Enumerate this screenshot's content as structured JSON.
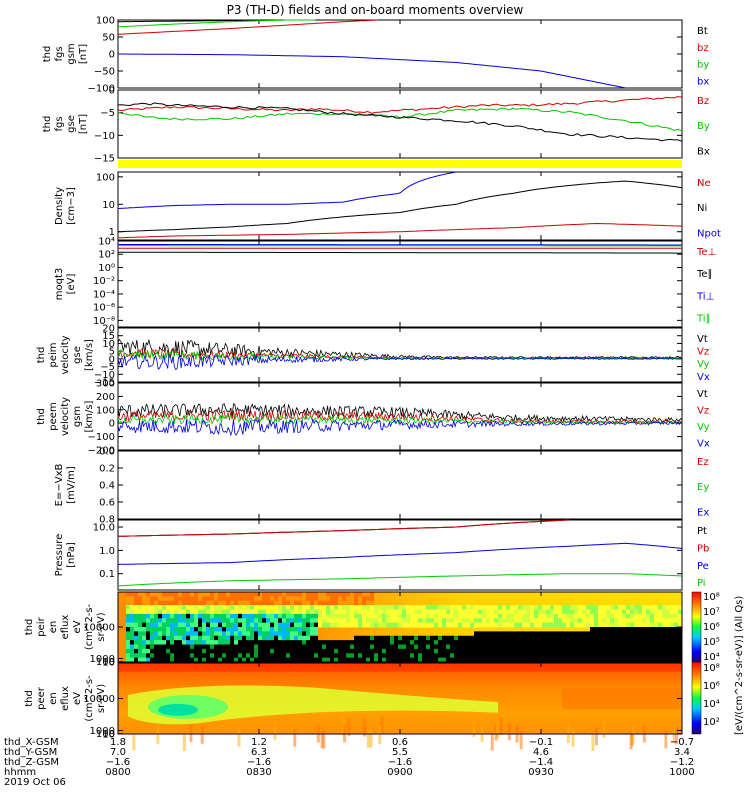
{
  "title": "P3 (TH-D) fields and on-board moments overview",
  "colors": {
    "black": "#000000",
    "red": "#d00000",
    "green": "#00c800",
    "blue": "#0000e0",
    "yellow": "#ffff00"
  },
  "chart_data": [
    {
      "id": "fgs_gsm",
      "type": "line",
      "ylabel": [
        "thd",
        "fgs",
        "gsm",
        "[nT]"
      ],
      "ylim": [
        -100,
        100
      ],
      "yticks": [
        "100",
        "50",
        "0",
        "−50",
        "−100"
      ],
      "series": [
        {
          "name": "Bt",
          "color": "black",
          "x": [
            0,
            0.3,
            0.46
          ],
          "y": [
            95,
            100,
            100
          ]
        },
        {
          "name": "bz",
          "color": "red",
          "x": [
            0,
            0.2,
            0.4,
            0.46
          ],
          "y": [
            58,
            75,
            95,
            100
          ]
        },
        {
          "name": "by",
          "color": "green",
          "x": [
            0,
            0.1,
            0.2,
            0.3,
            0.35
          ],
          "y": [
            80,
            88,
            95,
            100,
            100
          ]
        },
        {
          "name": "bx",
          "color": "blue",
          "x": [
            0,
            0.2,
            0.4,
            0.6,
            0.75,
            0.9
          ],
          "y": [
            0,
            -2,
            -8,
            -25,
            -50,
            -100
          ]
        }
      ]
    },
    {
      "id": "fgs_gse",
      "type": "line",
      "ylabel": [
        "thd",
        "fgs",
        "gse",
        "[nT]"
      ],
      "ylim": [
        -17,
        3
      ],
      "yticks": [
        "0",
        "−5",
        "−10",
        "−15"
      ],
      "series": [
        {
          "name": "Bz",
          "color": "red",
          "x": [
            0,
            0.05,
            0.1,
            0.2,
            0.3,
            0.35,
            0.45,
            0.55,
            0.65,
            0.72,
            0.8,
            0.9,
            1.0
          ],
          "y": [
            -3,
            -2.5,
            -2,
            -2.5,
            -3,
            -2.5,
            -3.5,
            -2.5,
            -1.5,
            -1.5,
            -1,
            0,
            1
          ]
        },
        {
          "name": "By",
          "color": "green",
          "x": [
            0,
            0.05,
            0.1,
            0.2,
            0.3,
            0.4,
            0.5,
            0.6,
            0.7,
            0.8,
            0.9,
            1.0
          ],
          "y": [
            -3.5,
            -5,
            -5.5,
            -5.5,
            -4,
            -4,
            -5,
            -3,
            -2.5,
            -3.5,
            -6,
            -9
          ]
        },
        {
          "name": "Bx",
          "color": "black",
          "x": [
            0,
            0.05,
            0.1,
            0.2,
            0.3,
            0.4,
            0.5,
            0.6,
            0.7,
            0.8,
            0.9,
            1.0
          ],
          "y": [
            -1.5,
            -1,
            -1.5,
            -2,
            -2.5,
            -4,
            -5,
            -6,
            -7.5,
            -10,
            -11,
            -12
          ]
        }
      ]
    },
    {
      "id": "density",
      "type": "line",
      "log": true,
      "ylabel": [
        "Density",
        "[cm−3]"
      ],
      "ylim": [
        0.5,
        150
      ],
      "ytickvals": [
        100,
        10,
        1
      ],
      "yticks": [
        "100",
        "10",
        "1"
      ],
      "series": [
        {
          "name": "Ne",
          "color": "red",
          "x": [
            0,
            0.1,
            0.3,
            0.5,
            0.7,
            0.85,
            1.0
          ],
          "y": [
            0.6,
            0.7,
            0.8,
            1.0,
            1.4,
            2.0,
            1.6
          ]
        },
        {
          "name": "Ni",
          "color": "black",
          "x": [
            0,
            0.1,
            0.2,
            0.3,
            0.5,
            0.6,
            0.7,
            0.85,
            0.9,
            1.0
          ],
          "y": [
            1,
            1.2,
            1.5,
            2,
            5,
            10,
            25,
            60,
            70,
            40
          ]
        },
        {
          "name": "Npot",
          "color": "blue",
          "x": [
            0,
            0.1,
            0.2,
            0.3,
            0.4,
            0.5,
            0.6
          ],
          "y": [
            7,
            9,
            10,
            10,
            12,
            25,
            150
          ]
        }
      ]
    },
    {
      "id": "moqt3",
      "type": "line",
      "log": true,
      "ylabel": [
        "moqt3",
        "[eV]"
      ],
      "ylim": [
        1e-09,
        10000.0
      ],
      "ytickvals": [
        10000.0,
        100.0,
        1,
        0.01,
        0.0001,
        1e-06,
        1e-08
      ],
      "yticks": [
        "10⁴",
        "10²",
        "10⁰",
        "10⁻²",
        "10⁻⁴",
        "10⁻⁶",
        "10⁻⁸"
      ],
      "series": [
        {
          "name": "Te⊥",
          "color": "red",
          "x": [
            0,
            1
          ],
          "y": [
            800,
            800
          ]
        },
        {
          "name": "Te∥",
          "color": "black",
          "x": [
            0,
            1
          ],
          "y": [
            200,
            150
          ]
        },
        {
          "name": "Ti⊥",
          "color": "blue",
          "x": [
            0,
            1
          ],
          "y": [
            3000,
            2500
          ]
        },
        {
          "name": "Ti∥",
          "color": "green",
          "x": [
            0,
            1
          ],
          "y": [
            2000,
            1800
          ]
        }
      ]
    },
    {
      "id": "peim_vel",
      "type": "noisy",
      "ylabel": [
        "thd",
        "peim",
        "velocity",
        "gse",
        "[km/s]"
      ],
      "ylim": [
        -15,
        20
      ],
      "yticks": [
        "20",
        "15",
        "10",
        "5",
        "0",
        "−5",
        "−10",
        "−15"
      ],
      "series": [
        {
          "name": "Vt",
          "color": "black",
          "x": [
            0,
            0.1,
            0.3,
            0.5,
            0.6,
            1.0
          ],
          "y": [
            8,
            7,
            4,
            1.5,
            1,
            1
          ],
          "amp": [
            5,
            6,
            3,
            1,
            0.5,
            0.5
          ]
        },
        {
          "name": "Vz",
          "color": "red",
          "x": [
            0,
            0.1,
            0.3,
            0.5,
            1.0
          ],
          "y": [
            4,
            3,
            2,
            0.5,
            0.5
          ],
          "amp": [
            3,
            3,
            1.5,
            0.5,
            0.3
          ]
        },
        {
          "name": "Vy",
          "color": "green",
          "x": [
            0,
            0.1,
            0.3,
            0.5,
            1.0
          ],
          "y": [
            3,
            2,
            1,
            0.5,
            0.2
          ],
          "amp": [
            3,
            3,
            1.5,
            0.5,
            0.3
          ]
        },
        {
          "name": "Vx",
          "color": "blue",
          "x": [
            0,
            0.1,
            0.3,
            0.5,
            1.0
          ],
          "y": [
            -2,
            -2,
            -0.5,
            0,
            0
          ],
          "amp": [
            4,
            5,
            2,
            0.5,
            0.3
          ]
        }
      ]
    },
    {
      "id": "peem_vel",
      "type": "noisy",
      "ylabel": [
        "thd",
        "peem",
        "velocity",
        "gsm",
        "[km/s]"
      ],
      "ylim": [
        -200,
        300
      ],
      "yticks": [
        "300",
        "200",
        "100",
        "0",
        "−100",
        "−200"
      ],
      "series": [
        {
          "name": "Vt",
          "color": "black",
          "x": [
            0,
            0.2,
            0.5,
            0.7,
            1.0
          ],
          "y": [
            90,
            100,
            80,
            40,
            25
          ],
          "amp": [
            50,
            50,
            40,
            25,
            15
          ]
        },
        {
          "name": "Vz",
          "color": "red",
          "x": [
            0,
            0.2,
            0.5,
            0.7,
            1.0
          ],
          "y": [
            50,
            60,
            50,
            15,
            10
          ],
          "amp": [
            40,
            40,
            30,
            15,
            10
          ]
        },
        {
          "name": "Vy",
          "color": "green",
          "x": [
            0,
            0.2,
            0.5,
            0.7,
            1.0
          ],
          "y": [
            20,
            30,
            20,
            10,
            5
          ],
          "amp": [
            30,
            35,
            25,
            10,
            8
          ]
        },
        {
          "name": "Vx",
          "color": "blue",
          "x": [
            0,
            0.2,
            0.5,
            0.7,
            1.0
          ],
          "y": [
            -20,
            -30,
            -10,
            -5,
            0
          ],
          "amp": [
            50,
            60,
            35,
            15,
            10
          ]
        }
      ]
    },
    {
      "id": "efield",
      "type": "line",
      "ylabel": [
        "E=−VxB",
        "[mV/m]"
      ],
      "ylim": [
        0,
        1
      ],
      "yticks": [
        "0.0",
        "0.2",
        "0.4",
        "0.6",
        "0.8"
      ],
      "series": [
        {
          "name": "Ez",
          "color": "red",
          "x": [],
          "y": []
        },
        {
          "name": "Ey",
          "color": "green",
          "x": [],
          "y": []
        },
        {
          "name": "Ex",
          "color": "blue",
          "x": [],
          "y": []
        }
      ]
    },
    {
      "id": "pressure",
      "type": "line",
      "log": true,
      "ylabel": [
        "Pressure",
        "[nPa]"
      ],
      "ylim": [
        0.02,
        20
      ],
      "ytickvals": [
        10,
        1,
        0.1
      ],
      "yticks": [
        "10.0",
        "1.0",
        "0.1"
      ],
      "series": [
        {
          "name": "Pt",
          "color": "black",
          "x": [
            0,
            0.2,
            0.4,
            0.6,
            0.8
          ],
          "y": [
            4,
            5,
            7,
            10,
            20
          ]
        },
        {
          "name": "Pb",
          "color": "red",
          "x": [
            0,
            0.2,
            0.4,
            0.6,
            0.8
          ],
          "y": [
            4,
            5,
            7,
            10,
            20
          ]
        },
        {
          "name": "Pe",
          "color": "blue",
          "x": [
            0,
            0.2,
            0.4,
            0.6,
            0.8,
            0.9,
            1.0
          ],
          "y": [
            0.25,
            0.3,
            0.5,
            0.8,
            1.5,
            2,
            1.2
          ]
        },
        {
          "name": "Pi",
          "color": "green",
          "x": [
            0,
            0.2,
            0.4,
            0.6,
            0.8,
            0.9,
            1.0
          ],
          "y": [
            0.03,
            0.05,
            0.06,
            0.08,
            0.1,
            0.1,
            0.08
          ]
        }
      ]
    },
    {
      "id": "peir",
      "type": "heatmap",
      "ylabel": [
        "thd",
        "peir",
        "en",
        "eflux",
        "eV",
        "(cm^2-s-",
        "sr-eV)"
      ],
      "ylim": [
        6,
        20000
      ],
      "ytickvals": [
        10000,
        1000,
        100,
        10
      ],
      "yticks": [
        "10000",
        "1000",
        "100",
        "10"
      ]
    },
    {
      "id": "peer",
      "type": "heatmap",
      "ylabel": [
        "thd",
        "peer",
        "en",
        "eflux",
        "eV",
        "(cm^2-s-",
        "sr-eV)"
      ],
      "ylim": [
        6,
        20000
      ],
      "ytickvals": [
        10000,
        1000,
        100,
        10
      ],
      "yticks": [
        "10000",
        "1000",
        "100",
        "10"
      ]
    }
  ],
  "colorbar": {
    "label": "[eV/(cm^2-s-sr-eV)] (All Qs)",
    "upper_ticks": [
      "10⁸",
      "10⁷",
      "10⁶",
      "10⁵",
      "10⁴"
    ],
    "lower_ticks": [
      "10⁸",
      "10⁶",
      "10⁴",
      "10²"
    ]
  },
  "xaxis": {
    "rows": [
      {
        "label": "thd_X-GSM",
        "values": [
          "1.8",
          "1.2",
          "0.6",
          "−0.1",
          "−0.7"
        ]
      },
      {
        "label": "thd_Y-GSM",
        "values": [
          "7.0",
          "6.3",
          "5.5",
          "4.6",
          "3.4"
        ]
      },
      {
        "label": "thd_Z-GSM",
        "values": [
          "−1.6",
          "−1.6",
          "−1.6",
          "−1.4",
          "−1.2"
        ]
      },
      {
        "label": "hhmm",
        "values": [
          "0800",
          "0830",
          "0900",
          "0930",
          "1000"
        ]
      }
    ],
    "date": "2019 Oct 06"
  }
}
